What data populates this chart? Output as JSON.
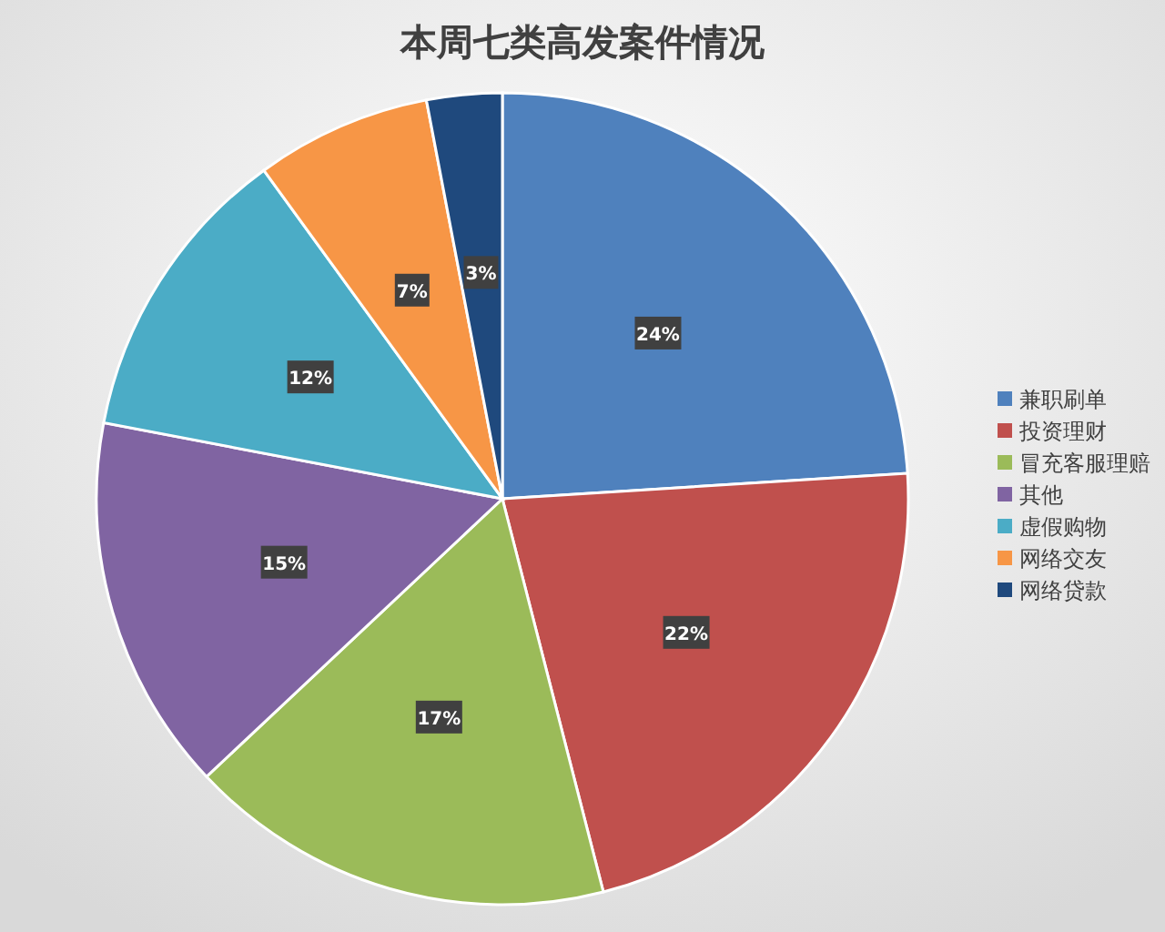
{
  "chart_data": {
    "type": "pie",
    "title": "本周七类高发案件情况",
    "categories": [
      "兼职刷单",
      "投资理财",
      "冒充客服理赔",
      "其他",
      "虚假购物",
      "网络交友",
      "网络贷款"
    ],
    "values": [
      24,
      22,
      17,
      15,
      12,
      7,
      3
    ],
    "colors": [
      "#4f81bd",
      "#c0504d",
      "#9bbb59",
      "#8064a2",
      "#4bacc6",
      "#f79646",
      "#1f497d"
    ],
    "value_labels": [
      "24%",
      "22%",
      "17%",
      "15%",
      "12%",
      "7%",
      "3%"
    ],
    "legend": "right"
  }
}
